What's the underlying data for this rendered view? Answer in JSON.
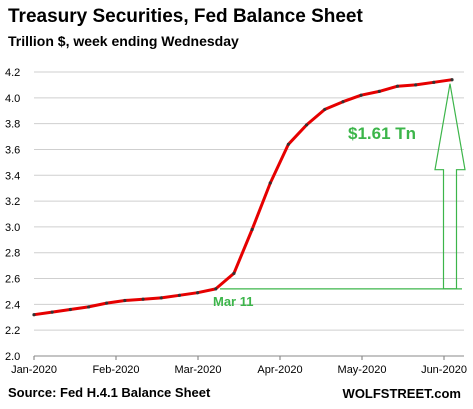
{
  "chart_data": {
    "type": "line",
    "title": "Treasury Securities, Fed Balance Sheet",
    "subtitle": "Trillion $, week ending Wednesday",
    "ylim": [
      2.0,
      4.2
    ],
    "yticks": [
      "2.0",
      "2.2",
      "2.4",
      "2.6",
      "2.8",
      "3.0",
      "3.2",
      "3.4",
      "3.6",
      "3.8",
      "4.0",
      "4.2"
    ],
    "xticks": [
      "Jan-2020",
      "Feb-2020",
      "Mar-2020",
      "Apr-2020",
      "May-2020",
      "Jun-2020"
    ],
    "grid": "horizontal",
    "series": [
      {
        "color": "#e60000",
        "values": [
          2.32,
          2.34,
          2.36,
          2.38,
          2.41,
          2.43,
          2.44,
          2.45,
          2.47,
          2.49,
          2.52,
          2.64,
          2.98,
          3.34,
          3.64,
          3.79,
          3.91,
          3.97,
          4.02,
          4.05,
          4.09,
          4.1,
          4.12,
          4.14
        ]
      }
    ],
    "annotations": {
      "baseline_label": "Mar 11",
      "baseline_value": 2.52,
      "increase_label": "$1.61 Tn",
      "annotation_color": "#3cb54a"
    },
    "source": "Source: Fed H.4.1 Balance Sheet",
    "brand": "WOLFSTREET.com"
  }
}
